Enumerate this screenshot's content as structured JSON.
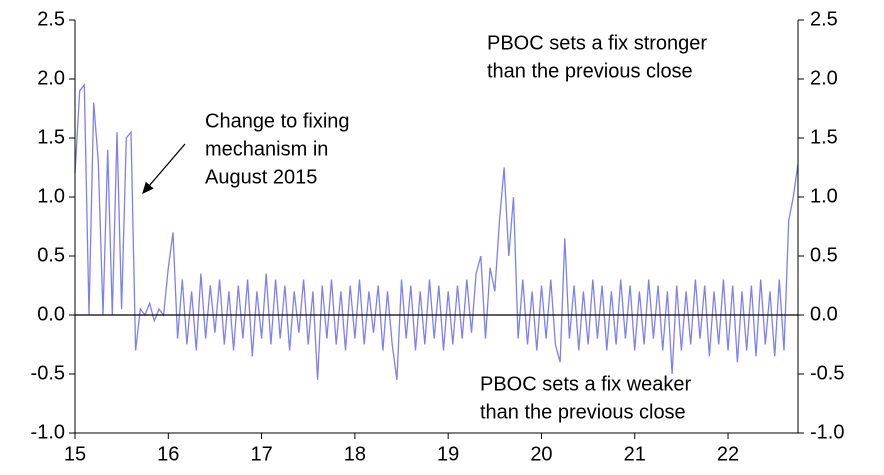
{
  "chart_data": {
    "type": "line",
    "x": [
      15,
      15.05,
      15.1,
      15.15,
      15.2,
      15.25,
      15.3,
      15.35,
      15.4,
      15.45,
      15.5,
      15.55,
      15.6,
      15.65,
      15.7,
      15.75,
      15.8,
      15.85,
      15.9,
      15.95,
      16,
      16.05,
      16.1,
      16.15,
      16.2,
      16.25,
      16.3,
      16.35,
      16.4,
      16.45,
      16.5,
      16.55,
      16.6,
      16.65,
      16.7,
      16.75,
      16.8,
      16.85,
      16.9,
      16.95,
      17,
      17.05,
      17.1,
      17.15,
      17.2,
      17.25,
      17.3,
      17.35,
      17.4,
      17.45,
      17.5,
      17.55,
      17.6,
      17.65,
      17.7,
      17.75,
      17.8,
      17.85,
      17.9,
      17.95,
      18,
      18.05,
      18.1,
      18.15,
      18.2,
      18.25,
      18.3,
      18.35,
      18.4,
      18.45,
      18.5,
      18.55,
      18.6,
      18.65,
      18.7,
      18.75,
      18.8,
      18.85,
      18.9,
      18.95,
      19,
      19.05,
      19.1,
      19.15,
      19.2,
      19.25,
      19.3,
      19.35,
      19.4,
      19.45,
      19.5,
      19.55,
      19.6,
      19.65,
      19.7,
      19.75,
      19.8,
      19.85,
      19.9,
      19.95,
      20,
      20.05,
      20.1,
      20.15,
      20.2,
      20.25,
      20.3,
      20.35,
      20.4,
      20.45,
      20.5,
      20.55,
      20.6,
      20.65,
      20.7,
      20.75,
      20.8,
      20.85,
      20.9,
      20.95,
      21,
      21.05,
      21.1,
      21.15,
      21.2,
      21.25,
      21.3,
      21.35,
      21.4,
      21.45,
      21.5,
      21.55,
      21.6,
      21.65,
      21.7,
      21.75,
      21.8,
      21.85,
      21.9,
      21.95,
      22,
      22.05,
      22.1,
      22.15,
      22.2,
      22.25,
      22.3,
      22.35,
      22.4,
      22.45,
      22.5,
      22.55,
      22.6,
      22.65,
      22.7,
      22.75
    ],
    "series": [
      {
        "color": "#7f7ff0",
        "values": [
          1.2,
          1.9,
          1.95,
          0.0,
          1.8,
          1.3,
          0.0,
          1.4,
          0.0,
          1.55,
          0.05,
          1.5,
          1.55,
          -0.3,
          0.05,
          0.0,
          0.1,
          -0.05,
          0.05,
          0.0,
          0.4,
          0.7,
          -0.2,
          0.3,
          -0.25,
          0.2,
          -0.3,
          0.35,
          -0.2,
          0.25,
          -0.15,
          0.3,
          -0.25,
          0.2,
          -0.3,
          0.25,
          -0.2,
          0.3,
          -0.35,
          0.2,
          -0.2,
          0.35,
          -0.25,
          0.3,
          -0.2,
          0.25,
          -0.3,
          0.2,
          -0.15,
          0.3,
          -0.25,
          0.2,
          -0.55,
          0.25,
          -0.2,
          0.3,
          -0.25,
          0.2,
          -0.3,
          0.25,
          -0.2,
          0.3,
          -0.25,
          0.2,
          -0.15,
          0.25,
          -0.3,
          0.2,
          -0.25,
          -0.55,
          0.3,
          -0.2,
          0.25,
          -0.3,
          0.2,
          -0.25,
          0.3,
          -0.2,
          0.25,
          -0.3,
          0.2,
          -0.25,
          0.25,
          -0.2,
          0.3,
          -0.15,
          0.35,
          0.5,
          -0.2,
          0.4,
          0.2,
          0.8,
          1.25,
          0.5,
          1.0,
          -0.2,
          0.3,
          -0.25,
          0.2,
          -0.3,
          0.25,
          -0.2,
          0.3,
          -0.25,
          -0.4,
          0.65,
          -0.2,
          0.25,
          -0.3,
          0.2,
          -0.25,
          0.3,
          -0.2,
          0.25,
          -0.3,
          0.2,
          -0.25,
          0.3,
          -0.2,
          0.25,
          -0.3,
          0.2,
          -0.25,
          0.3,
          -0.2,
          0.25,
          -0.3,
          0.2,
          -0.5,
          0.25,
          -0.3,
          0.2,
          -0.25,
          0.3,
          -0.2,
          0.25,
          -0.35,
          0.2,
          -0.25,
          0.3,
          -0.3,
          0.25,
          -0.4,
          0.2,
          -0.3,
          0.25,
          -0.35,
          0.3,
          -0.25,
          0.2,
          -0.35,
          0.3,
          -0.3,
          0.8,
          1.0,
          1.28
        ]
      }
    ],
    "xlim": [
      15,
      22.75
    ],
    "xticks": [
      15,
      16,
      17,
      18,
      19,
      20,
      21,
      22
    ],
    "ylim": [
      -1,
      2.5
    ],
    "yticks": [
      {
        "value": -1,
        "label": "-1.0"
      },
      -0.5,
      {
        "value": 0,
        "label": "0.0"
      },
      0.5,
      {
        "value": 1,
        "label": "1.0"
      },
      1.5,
      {
        "value": 2,
        "label": "2.0"
      },
      2.5
    ],
    "y2lim": [
      -1,
      2.5
    ],
    "y2ticks": [
      {
        "value": -1,
        "label": "-1.0"
      },
      -0.5,
      {
        "value": 0,
        "label": "0.0"
      },
      0.5,
      {
        "value": 1,
        "label": "1.0"
      },
      1.5,
      {
        "value": 2,
        "label": "2.0"
      },
      2.5
    ],
    "annotations": [
      {
        "lines": [
          "Change to fixing",
          "mechanism in",
          "August 2015"
        ]
      },
      {
        "lines": [
          "PBOC sets a fix stronger",
          "than the previous close"
        ]
      },
      {
        "lines": [
          "PBOC sets a fix weaker",
          "than the previous close"
        ]
      }
    ]
  }
}
